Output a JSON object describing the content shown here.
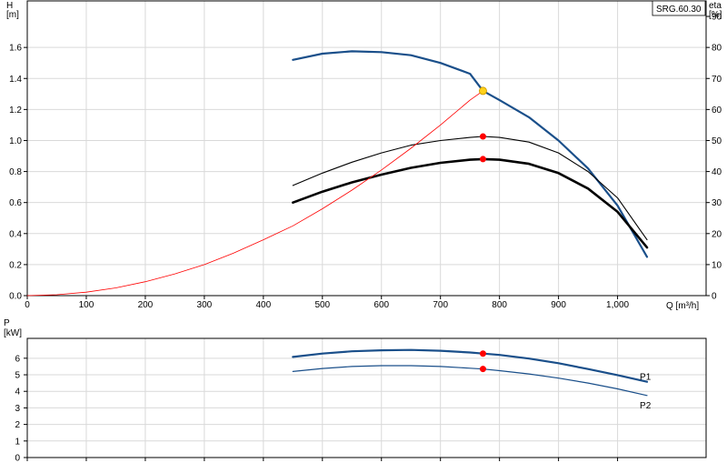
{
  "chart_data": [
    {
      "type": "line",
      "panel": "pump-performance",
      "title": "SRG.60.30",
      "xlabel": "Q [m³/h]",
      "ylabel_left": "H [m]",
      "ylabel_right": "eta [%]",
      "xlim": [
        0,
        1150
      ],
      "ylim_left": [
        0,
        1.9
      ],
      "ylim_right": [
        0,
        95
      ],
      "x_ticks": [
        {
          "value": 0,
          "label": "0"
        },
        {
          "value": 100,
          "label": "100"
        },
        {
          "value": 200,
          "label": "200"
        },
        {
          "value": 300,
          "label": "300"
        },
        {
          "value": 400,
          "label": "400"
        },
        {
          "value": 500,
          "label": "500"
        },
        {
          "value": 600,
          "label": "600"
        },
        {
          "value": 700,
          "label": "700"
        },
        {
          "value": 800,
          "label": "800"
        },
        {
          "value": 900,
          "label": "900"
        },
        {
          "value": 1000,
          "label": "1,000"
        }
      ],
      "y_left_ticks": [
        {
          "value": 0,
          "label": "0.0"
        },
        {
          "value": 0.2,
          "label": "0.2"
        },
        {
          "value": 0.4,
          "label": "0.4"
        },
        {
          "value": 0.6,
          "label": "0.6"
        },
        {
          "value": 0.8,
          "label": "0.8"
        },
        {
          "value": 1.0,
          "label": "1.0"
        },
        {
          "value": 1.2,
          "label": "1.2"
        },
        {
          "value": 1.4,
          "label": "1.4"
        },
        {
          "value": 1.6,
          "label": "1.6"
        }
      ],
      "y_right_ticks": [
        {
          "value": 0,
          "label": "0"
        },
        {
          "value": 10,
          "label": "10"
        },
        {
          "value": 20,
          "label": "20"
        },
        {
          "value": 30,
          "label": "30"
        },
        {
          "value": 40,
          "label": "40"
        },
        {
          "value": 50,
          "label": "50"
        },
        {
          "value": 60,
          "label": "60"
        },
        {
          "value": 70,
          "label": "70"
        },
        {
          "value": 80,
          "label": "80"
        },
        {
          "value": 90,
          "label": "90"
        }
      ],
      "grid": true,
      "series": [
        {
          "color": "#1a4f8a",
          "axis": "left",
          "kind": "head",
          "x": [
            450,
            500,
            550,
            600,
            650,
            700,
            750,
            772,
            800,
            850,
            900,
            950,
            1000,
            1050
          ],
          "y": [
            1.52,
            1.56,
            1.575,
            1.57,
            1.55,
            1.5,
            1.43,
            1.32,
            1.26,
            1.15,
            1.0,
            0.82,
            0.58,
            0.25
          ]
        },
        {
          "color": "#000000",
          "axis": "right",
          "kind": "efficiency-thin",
          "x": [
            450,
            500,
            550,
            600,
            650,
            700,
            750,
            772,
            800,
            850,
            900,
            950,
            1000,
            1050
          ],
          "y": [
            35.5,
            39.5,
            43,
            46,
            48.5,
            50,
            51,
            51.3,
            51,
            49.5,
            46,
            40,
            31.5,
            18
          ]
        },
        {
          "color": "#000000",
          "axis": "right",
          "kind": "efficiency-thick",
          "x": [
            450,
            500,
            550,
            600,
            650,
            700,
            750,
            772,
            800,
            850,
            900,
            950,
            1000,
            1050
          ],
          "y": [
            30,
            33.5,
            36.5,
            39,
            41.2,
            42.8,
            43.8,
            44,
            43.8,
            42.5,
            39.5,
            34.5,
            27,
            15.5
          ]
        },
        {
          "color": "#ff0000",
          "axis": "left",
          "kind": "system-curve",
          "x": [
            0,
            50,
            100,
            150,
            200,
            250,
            300,
            350,
            400,
            450,
            500,
            550,
            600,
            650,
            700,
            750,
            772
          ],
          "y": [
            0,
            0.006,
            0.022,
            0.05,
            0.09,
            0.14,
            0.2,
            0.275,
            0.36,
            0.45,
            0.56,
            0.68,
            0.81,
            0.95,
            1.1,
            1.26,
            1.32
          ]
        }
      ],
      "markers": [
        {
          "x": 772,
          "y": 1.32,
          "axis": "left",
          "color": "#ffd21a",
          "stroke": "#d4a000"
        },
        {
          "x": 772,
          "y": 51.3,
          "axis": "right",
          "color": "#ff0000",
          "stroke": "#ff0000"
        },
        {
          "x": 772,
          "y": 44,
          "axis": "right",
          "color": "#ff0000",
          "stroke": "#ff0000"
        }
      ]
    },
    {
      "type": "line",
      "panel": "power",
      "ylabel": "P [kW]",
      "xlim": [
        0,
        1150
      ],
      "ylim": [
        0,
        7.2
      ],
      "y_ticks": [
        {
          "value": 0,
          "label": "0"
        },
        {
          "value": 1,
          "label": "1"
        },
        {
          "value": 2,
          "label": "2"
        },
        {
          "value": 3,
          "label": "3"
        },
        {
          "value": 4,
          "label": "4"
        },
        {
          "value": 5,
          "label": "5"
        },
        {
          "value": 6,
          "label": "6"
        }
      ],
      "grid": true,
      "series": [
        {
          "name": "P1",
          "color": "#1a4f8a",
          "x": [
            450,
            500,
            550,
            600,
            650,
            700,
            750,
            772,
            800,
            850,
            900,
            950,
            1000,
            1050
          ],
          "y": [
            6.08,
            6.28,
            6.42,
            6.48,
            6.5,
            6.45,
            6.35,
            6.28,
            6.2,
            5.98,
            5.7,
            5.35,
            4.98,
            4.58
          ]
        },
        {
          "name": "P2",
          "color": "#1a4f8a",
          "x": [
            450,
            500,
            550,
            600,
            650,
            700,
            750,
            772,
            800,
            850,
            900,
            950,
            1000,
            1050
          ],
          "y": [
            5.2,
            5.38,
            5.5,
            5.55,
            5.55,
            5.5,
            5.4,
            5.35,
            5.25,
            5.05,
            4.8,
            4.5,
            4.15,
            3.75
          ]
        }
      ],
      "markers": [
        {
          "x": 772,
          "y": 6.28,
          "color": "#ff0000"
        },
        {
          "x": 772,
          "y": 5.35,
          "color": "#ff0000"
        }
      ]
    }
  ]
}
